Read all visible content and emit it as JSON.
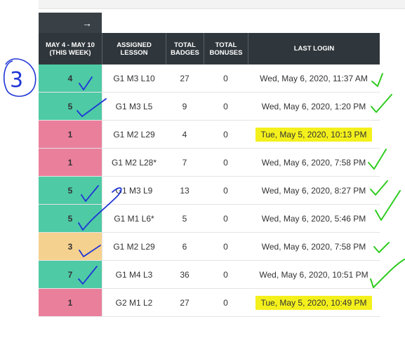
{
  "nav": {
    "arrow": "→"
  },
  "columns": [
    "MAY 4 - MAY 10\n(THIS WEEK)",
    "ASSIGNED\nLESSON",
    "TOTAL\nBADGES",
    "TOTAL\nBONUSES",
    "LAST LOGIN"
  ],
  "rows": [
    {
      "week": "4",
      "lesson": "G1 M3 L10",
      "badges": "27",
      "bonuses": "0",
      "login": "Wed, May 6, 2020, 11:37 AM",
      "status": "green",
      "highlight": false
    },
    {
      "week": "5",
      "lesson": "G1 M3 L5",
      "badges": "9",
      "bonuses": "0",
      "login": "Wed, May 6, 2020, 1:20 PM",
      "status": "green",
      "highlight": false
    },
    {
      "week": "1",
      "lesson": "G1 M2 L29",
      "badges": "4",
      "bonuses": "0",
      "login": "Tue, May 5, 2020, 10:13 PM",
      "status": "pink",
      "highlight": true
    },
    {
      "week": "1",
      "lesson": "G1 M2 L28*",
      "badges": "7",
      "bonuses": "0",
      "login": "Wed, May 6, 2020, 7:58 PM",
      "status": "pink",
      "highlight": false
    },
    {
      "week": "5",
      "lesson": "G1 M3 L9",
      "badges": "13",
      "bonuses": "0",
      "login": "Wed, May 6, 2020, 8:27 PM",
      "status": "green",
      "highlight": false
    },
    {
      "week": "5",
      "lesson": "G1 M1 L6*",
      "badges": "5",
      "bonuses": "0",
      "login": "Wed, May 6, 2020, 5:46 PM",
      "status": "green",
      "highlight": false
    },
    {
      "week": "3",
      "lesson": "G1 M2 L29",
      "badges": "6",
      "bonuses": "0",
      "login": "Wed, May 6, 2020, 7:58 PM",
      "status": "amber",
      "highlight": false
    },
    {
      "week": "7",
      "lesson": "G1 M4 L3",
      "badges": "36",
      "bonuses": "0",
      "login": "Wed, May 6, 2020, 10:51 PM",
      "status": "green",
      "highlight": false
    },
    {
      "week": "1",
      "lesson": "G2 M1 L2",
      "badges": "27",
      "bonuses": "0",
      "login": "Tue, May 5, 2020, 10:49 PM",
      "status": "pink",
      "highlight": true
    }
  ],
  "annotation": {
    "circled_number": "3"
  },
  "colors": {
    "green": "#4ecaa5",
    "pink": "#ea7f9c",
    "amber": "#f5d18f",
    "ink_blue": "#1f36d6",
    "check_green": "#2ecc1f",
    "highlight": "#f4f01c"
  }
}
